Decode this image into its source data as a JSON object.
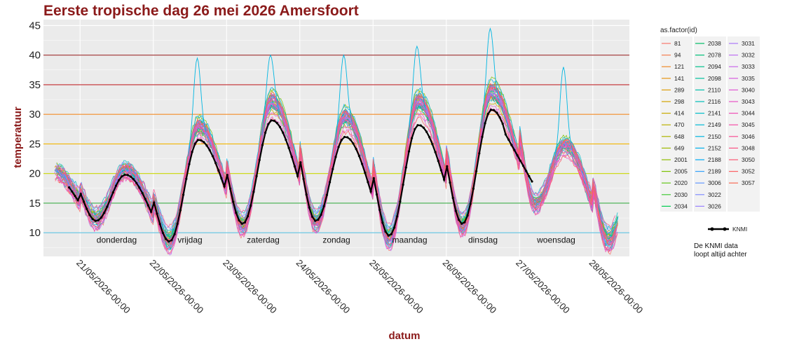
{
  "chart_data": {
    "type": "line",
    "title": "Eerste tropische dag 26 mei 2026 Amersfoort",
    "xlabel": "datum",
    "ylabel": "temperatuur",
    "ylim": [
      6,
      46
    ],
    "xlim": [
      -0.5,
      7.5
    ],
    "yticks": [
      10,
      15,
      20,
      25,
      30,
      35,
      40,
      45
    ],
    "x_tick_labels": [
      "21/05/2026-00:00",
      "22/05/2026-00:00",
      "23/05/2026-00:00",
      "24/05/2026-00:00",
      "25/05/2026-00:00",
      "26/05/2026-00:00",
      "27/05/2026-00:00",
      "28/05/2026-00:00"
    ],
    "day_labels": [
      {
        "x": 0.5,
        "text": "donderdag"
      },
      {
        "x": 1.5,
        "text": "vrijdag"
      },
      {
        "x": 2.5,
        "text": "zaterdag"
      },
      {
        "x": 3.5,
        "text": "zondag"
      },
      {
        "x": 4.5,
        "text": "maandag"
      },
      {
        "x": 5.5,
        "text": "dinsdag"
      },
      {
        "x": 6.5,
        "text": "woensdag"
      }
    ],
    "reference_lines": [
      {
        "y": 10,
        "color": "#5bc0de"
      },
      {
        "y": 15,
        "color": "#3fae49"
      },
      {
        "y": 20,
        "color": "#c8d400"
      },
      {
        "y": 25,
        "color": "#f0b400"
      },
      {
        "y": 30,
        "color": "#f08a24"
      },
      {
        "y": 35,
        "color": "#c0282d"
      },
      {
        "y": 40,
        "color": "#9b2d2d"
      }
    ],
    "daily_min": [
      12.5,
      9.0,
      11.5,
      12.0,
      9.5,
      11.5,
      15.0,
      9.0
    ],
    "daily_max": [
      20.5,
      27.5,
      31.5,
      29.0,
      31.5,
      33.0,
      24.5
    ],
    "knmi_series": {
      "name": "KNMI",
      "color": "#000000",
      "start": -0.15,
      "end": 6.2,
      "minima": [
        12.0,
        8.5,
        11.5,
        12.0,
        9.5,
        11.5
      ],
      "maxima": [
        19.8,
        25.7,
        29.0,
        26.2,
        28.2,
        30.8
      ],
      "end_value": 18.0
    },
    "legend": {
      "title": "as.factor(id)",
      "columns": [
        [
          {
            "label": "81",
            "color": "#f8766d"
          },
          {
            "label": "94",
            "color": "#f57f4f"
          },
          {
            "label": "121",
            "color": "#ef8a2a"
          },
          {
            "label": "141",
            "color": "#e69514"
          },
          {
            "label": "289",
            "color": "#dd9d09"
          },
          {
            "label": "298",
            "color": "#d3a400"
          },
          {
            "label": "414",
            "color": "#c8aa00"
          },
          {
            "label": "470",
            "color": "#bbb000"
          },
          {
            "label": "648",
            "color": "#adb500"
          },
          {
            "label": "649",
            "color": "#9eba00"
          },
          {
            "label": "2001",
            "color": "#8ebe00"
          },
          {
            "label": "2005",
            "color": "#7bc200"
          },
          {
            "label": "2020",
            "color": "#63c618"
          },
          {
            "label": "2030",
            "color": "#42c937"
          },
          {
            "label": "2034",
            "color": "#00cc50"
          }
        ],
        [
          {
            "label": "2038",
            "color": "#00be67"
          },
          {
            "label": "2078",
            "color": "#00c079"
          },
          {
            "label": "2094",
            "color": "#00c18b"
          },
          {
            "label": "2098",
            "color": "#00c19c"
          },
          {
            "label": "2110",
            "color": "#00c0ac"
          },
          {
            "label": "2116",
            "color": "#00bfbb"
          },
          {
            "label": "2141",
            "color": "#00bdc9"
          },
          {
            "label": "2149",
            "color": "#00bad6"
          },
          {
            "label": "2150",
            "color": "#00b6e2"
          },
          {
            "label": "2152",
            "color": "#00b1ec"
          },
          {
            "label": "2188",
            "color": "#00abf5"
          },
          {
            "label": "2189",
            "color": "#35a2fb"
          },
          {
            "label": "3006",
            "color": "#6298ff"
          },
          {
            "label": "3022",
            "color": "#808dff"
          },
          {
            "label": "3026",
            "color": "#9a82ff"
          }
        ],
        [
          {
            "label": "3031",
            "color": "#ad78fa"
          },
          {
            "label": "3032",
            "color": "#bd6ef3"
          },
          {
            "label": "3033",
            "color": "#ca65ea"
          },
          {
            "label": "3035",
            "color": "#d65ddf"
          },
          {
            "label": "3040",
            "color": "#e057d3"
          },
          {
            "label": "3043",
            "color": "#e852c5"
          },
          {
            "label": "3044",
            "color": "#ef4fb6"
          },
          {
            "label": "3045",
            "color": "#f44ea6"
          },
          {
            "label": "3046",
            "color": "#f85095"
          },
          {
            "label": "3048",
            "color": "#fa5384"
          },
          {
            "label": "3050",
            "color": "#fb5873"
          },
          {
            "label": "3052",
            "color": "#fb6063"
          },
          {
            "label": "3057",
            "color": "#f86b55"
          }
        ]
      ],
      "knmi_label": "KNMI",
      "note_lines": [
        "De KNMI data",
        "loopt altijd achter"
      ]
    }
  }
}
